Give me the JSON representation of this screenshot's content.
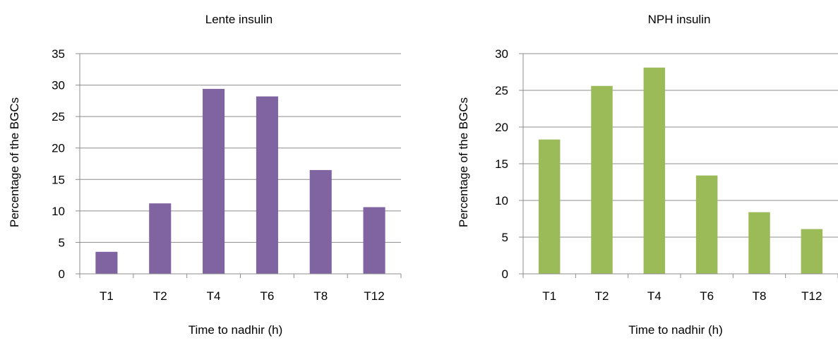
{
  "chart_data": [
    {
      "type": "bar",
      "title": "Lente insulin",
      "xlabel": "Time to nadhir (h)",
      "ylabel": "Percentage of the BGCs",
      "categories": [
        "T1",
        "T2",
        "T4",
        "T6",
        "T8",
        "T12"
      ],
      "values": [
        3.5,
        11.2,
        29.4,
        28.2,
        16.5,
        10.6
      ],
      "ylim": [
        0,
        35
      ],
      "yticks": [
        0,
        5,
        10,
        15,
        20,
        25,
        30,
        35
      ],
      "grid": true,
      "color": "#8064a2"
    },
    {
      "type": "bar",
      "title": "NPH insulin",
      "xlabel": "Time to nadhir (h)",
      "ylabel": "Percentage of the BGCs",
      "categories": [
        "T1",
        "T2",
        "T4",
        "T6",
        "T8",
        "T12"
      ],
      "values": [
        18.3,
        25.6,
        28.1,
        13.4,
        8.4,
        6.1
      ],
      "ylim": [
        0,
        30
      ],
      "yticks": [
        0,
        5,
        10,
        15,
        20,
        25,
        30
      ],
      "grid": true,
      "color": "#9bbb59"
    }
  ]
}
